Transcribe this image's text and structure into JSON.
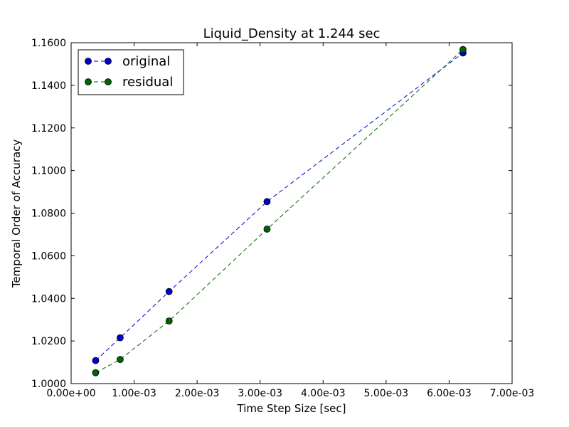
{
  "chart_data": {
    "type": "line",
    "title": "Liquid_Density at 1.244 sec",
    "xlabel": "Time Step Size [sec]",
    "ylabel": "Temporal Order of Accuracy",
    "xlim": [
      0,
      0.007
    ],
    "ylim": [
      1.0,
      1.16
    ],
    "xticks": [
      0,
      0.001,
      0.002,
      0.003,
      0.004,
      0.005,
      0.006,
      0.007
    ],
    "xtick_labels": [
      "0.00e+00",
      "1.00e-03",
      "2.00e-03",
      "3.00e-03",
      "4.00e-03",
      "5.00e-03",
      "6.00e-03",
      "7.00e-03"
    ],
    "yticks": [
      1.0,
      1.02,
      1.04,
      1.06,
      1.08,
      1.1,
      1.12,
      1.14,
      1.16
    ],
    "ytick_labels": [
      "1.0000",
      "1.0200",
      "1.0400",
      "1.0600",
      "1.0800",
      "1.1000",
      "1.1200",
      "1.1400",
      "1.1600"
    ],
    "x": [
      0.000389,
      0.000778,
      0.001555,
      0.00311,
      0.00622
    ],
    "series": [
      {
        "name": "original",
        "color": "#0000cc",
        "values": [
          1.0108,
          1.0215,
          1.0432,
          1.0854,
          1.1552
        ]
      },
      {
        "name": "residual",
        "color": "#006400",
        "values": [
          1.0051,
          1.0113,
          1.0294,
          1.0725,
          1.1568
        ]
      }
    ],
    "line_style": "dashed",
    "marker": "circle",
    "legend_position": "upper-left",
    "grid": false
  }
}
